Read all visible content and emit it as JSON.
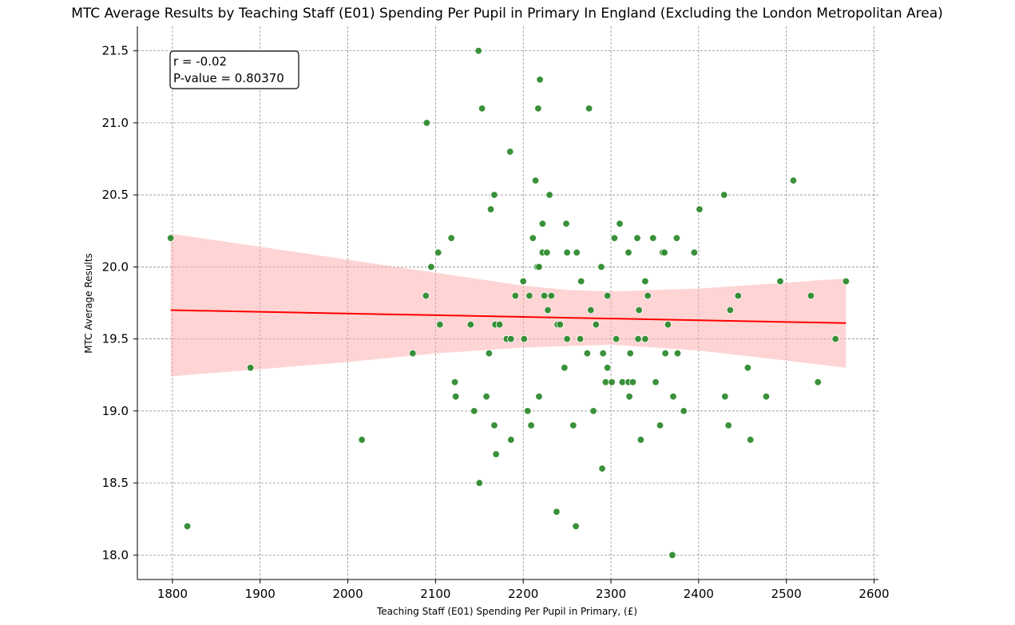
{
  "chart_data": {
    "type": "scatter",
    "title": "MTC Average Results by Teaching Staff (E01) Spending Per Pupil in Primary In England (Excluding the London Metropolitan Area)",
    "xlabel": "Teaching Staff (E01) Spending Per Pupil in Primary, (£)",
    "ylabel": "MTC Average Results",
    "xlim": [
      1760,
      2605
    ],
    "ylim": [
      17.83,
      21.67
    ],
    "xticks": [
      1800,
      1900,
      2000,
      2100,
      2200,
      2300,
      2400,
      2500,
      2600
    ],
    "xtick_labels": [
      "1800",
      "1900",
      "2000",
      "2100",
      "2200",
      "2300",
      "2400",
      "2500",
      "2600"
    ],
    "yticks": [
      18.0,
      18.5,
      19.0,
      19.5,
      20.0,
      20.5,
      21.0,
      21.5
    ],
    "ytick_labels": [
      "18.0",
      "18.5",
      "19.0",
      "19.5",
      "20.0",
      "20.5",
      "21.0",
      "21.5"
    ],
    "grid": true,
    "annotation": {
      "line1": "r = -0.02",
      "line2": "P-value = 0.80370"
    },
    "colors": {
      "points": "#2e8b2e",
      "point_edge": "#ffffff",
      "regression": "#ff0000",
      "confidence_band": "#ffb0b0"
    },
    "points": [
      [
        1798,
        20.2
      ],
      [
        1817,
        18.2
      ],
      [
        1889,
        19.3
      ],
      [
        2016,
        18.8
      ],
      [
        2074,
        19.4
      ],
      [
        2089,
        19.8
      ],
      [
        2090,
        21.0
      ],
      [
        2095,
        20.0
      ],
      [
        2103,
        20.1
      ],
      [
        2105,
        19.6
      ],
      [
        2118,
        20.2
      ],
      [
        2122,
        19.2
      ],
      [
        2123,
        19.1
      ],
      [
        2140,
        19.6
      ],
      [
        2144,
        19.0
      ],
      [
        2149,
        21.5
      ],
      [
        2150,
        18.5
      ],
      [
        2153,
        21.1
      ],
      [
        2158,
        19.1
      ],
      [
        2161,
        19.4
      ],
      [
        2163,
        20.4
      ],
      [
        2167,
        18.9
      ],
      [
        2167,
        20.5
      ],
      [
        2169,
        18.7
      ],
      [
        2168,
        19.6
      ],
      [
        2173,
        19.6
      ],
      [
        2181,
        19.5
      ],
      [
        2185,
        20.8
      ],
      [
        2186,
        19.5
      ],
      [
        2186,
        18.8
      ],
      [
        2191,
        19.8
      ],
      [
        2200,
        19.9
      ],
      [
        2201,
        19.5
      ],
      [
        2205,
        19.0
      ],
      [
        2207,
        19.8
      ],
      [
        2209,
        18.9
      ],
      [
        2211,
        20.2
      ],
      [
        2214,
        20.6
      ],
      [
        2216,
        20.0
      ],
      [
        2217,
        21.1
      ],
      [
        2218,
        19.1
      ],
      [
        2218,
        20.0
      ],
      [
        2219,
        21.3
      ],
      [
        2222,
        20.1
      ],
      [
        2222,
        20.3
      ],
      [
        2224,
        19.8
      ],
      [
        2227,
        20.1
      ],
      [
        2228,
        19.7
      ],
      [
        2230,
        20.5
      ],
      [
        2232,
        19.8
      ],
      [
        2238,
        18.3
      ],
      [
        2239,
        19.6
      ],
      [
        2242,
        19.6
      ],
      [
        2247,
        19.3
      ],
      [
        2249,
        20.3
      ],
      [
        2250,
        19.5
      ],
      [
        2250,
        20.1
      ],
      [
        2257,
        18.9
      ],
      [
        2260,
        18.2
      ],
      [
        2261,
        20.1
      ],
      [
        2265,
        19.5
      ],
      [
        2266,
        19.9
      ],
      [
        2273,
        19.4
      ],
      [
        2275,
        21.1
      ],
      [
        2277,
        19.7
      ],
      [
        2280,
        19.0
      ],
      [
        2283,
        19.6
      ],
      [
        2289,
        20.0
      ],
      [
        2290,
        18.6
      ],
      [
        2291,
        19.4
      ],
      [
        2294,
        19.2
      ],
      [
        2296,
        19.3
      ],
      [
        2296,
        19.8
      ],
      [
        2301,
        19.2
      ],
      [
        2304,
        20.2
      ],
      [
        2306,
        19.5
      ],
      [
        2310,
        20.3
      ],
      [
        2313,
        19.2
      ],
      [
        2320,
        20.1
      ],
      [
        2320,
        19.2
      ],
      [
        2321,
        19.1
      ],
      [
        2322,
        19.4
      ],
      [
        2325,
        19.2
      ],
      [
        2330,
        20.2
      ],
      [
        2331,
        19.5
      ],
      [
        2332,
        19.7
      ],
      [
        2334,
        18.8
      ],
      [
        2339,
        19.9
      ],
      [
        2339,
        19.5
      ],
      [
        2342,
        19.8
      ],
      [
        2348,
        20.2
      ],
      [
        2351,
        19.2
      ],
      [
        2356,
        18.9
      ],
      [
        2359,
        20.1
      ],
      [
        2361,
        20.1
      ],
      [
        2362,
        19.4
      ],
      [
        2365,
        19.6
      ],
      [
        2370,
        18.0
      ],
      [
        2371,
        19.1
      ],
      [
        2375,
        20.2
      ],
      [
        2376,
        19.4
      ],
      [
        2383,
        19.0
      ],
      [
        2395,
        20.1
      ],
      [
        2401,
        20.4
      ],
      [
        2429,
        20.5
      ],
      [
        2430,
        19.1
      ],
      [
        2434,
        18.9
      ],
      [
        2436,
        19.7
      ],
      [
        2445,
        19.8
      ],
      [
        2456,
        19.3
      ],
      [
        2459,
        18.8
      ],
      [
        2477,
        19.1
      ],
      [
        2493,
        19.9
      ],
      [
        2508,
        20.6
      ],
      [
        2528,
        19.8
      ],
      [
        2536,
        19.2
      ],
      [
        2556,
        19.5
      ],
      [
        2568,
        19.9
      ]
    ],
    "regression_line": {
      "x": [
        1798,
        2568
      ],
      "y": [
        19.7,
        19.61
      ]
    },
    "confidence_band": {
      "x": [
        1798,
        1900,
        2000,
        2100,
        2200,
        2250,
        2300,
        2400,
        2500,
        2568
      ],
      "upper": [
        20.23,
        20.14,
        20.05,
        19.96,
        19.87,
        19.84,
        19.83,
        19.85,
        19.89,
        19.92
      ],
      "lower": [
        19.24,
        19.29,
        19.34,
        19.4,
        19.44,
        19.45,
        19.46,
        19.42,
        19.35,
        19.3
      ]
    }
  }
}
